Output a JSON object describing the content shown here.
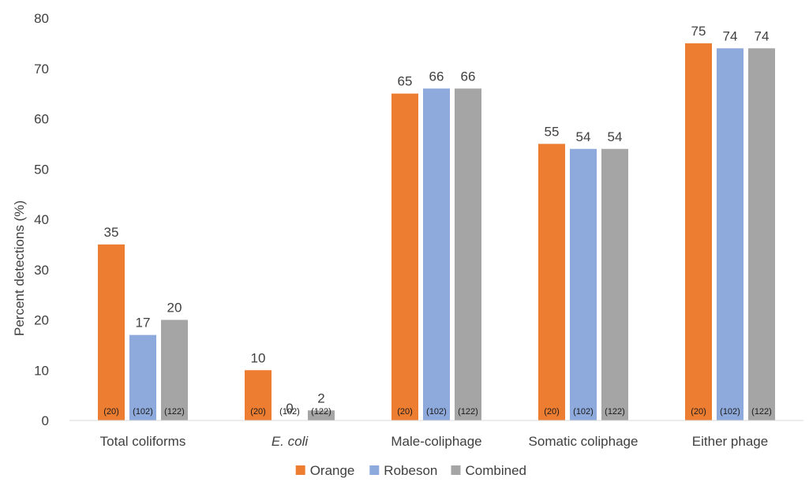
{
  "chart_data": {
    "type": "bar",
    "title": "",
    "xlabel": "",
    "ylabel": "Percent detections (%)",
    "ylim": [
      0,
      80
    ],
    "yticks": [
      0,
      10,
      20,
      30,
      40,
      50,
      60,
      70,
      80
    ],
    "grid": false,
    "legend_position": "bottom",
    "categories": [
      "Total coliforms",
      "E. coli",
      "Male-coliphage",
      "Somatic coliphage",
      "Either phage"
    ],
    "italic_categories": [
      "E. coli"
    ],
    "series": [
      {
        "name": "Orange",
        "color": "#ED7D31",
        "values": [
          35,
          10,
          65,
          55,
          75
        ],
        "sample_sizes": [
          "(20)",
          "(20)",
          "(20)",
          "(20)",
          "(20)"
        ]
      },
      {
        "name": "Robeson",
        "color": "#8EA9DB",
        "values": [
          17,
          0,
          66,
          54,
          74
        ],
        "sample_sizes": [
          "(102)",
          "(102)",
          "(102)",
          "(102)",
          "(102)"
        ]
      },
      {
        "name": "Combined",
        "color": "#A5A5A5",
        "values": [
          20,
          2,
          66,
          54,
          74
        ],
        "sample_sizes": [
          "(122)",
          "(122)",
          "(122)",
          "(122)",
          "(122)"
        ]
      }
    ]
  }
}
